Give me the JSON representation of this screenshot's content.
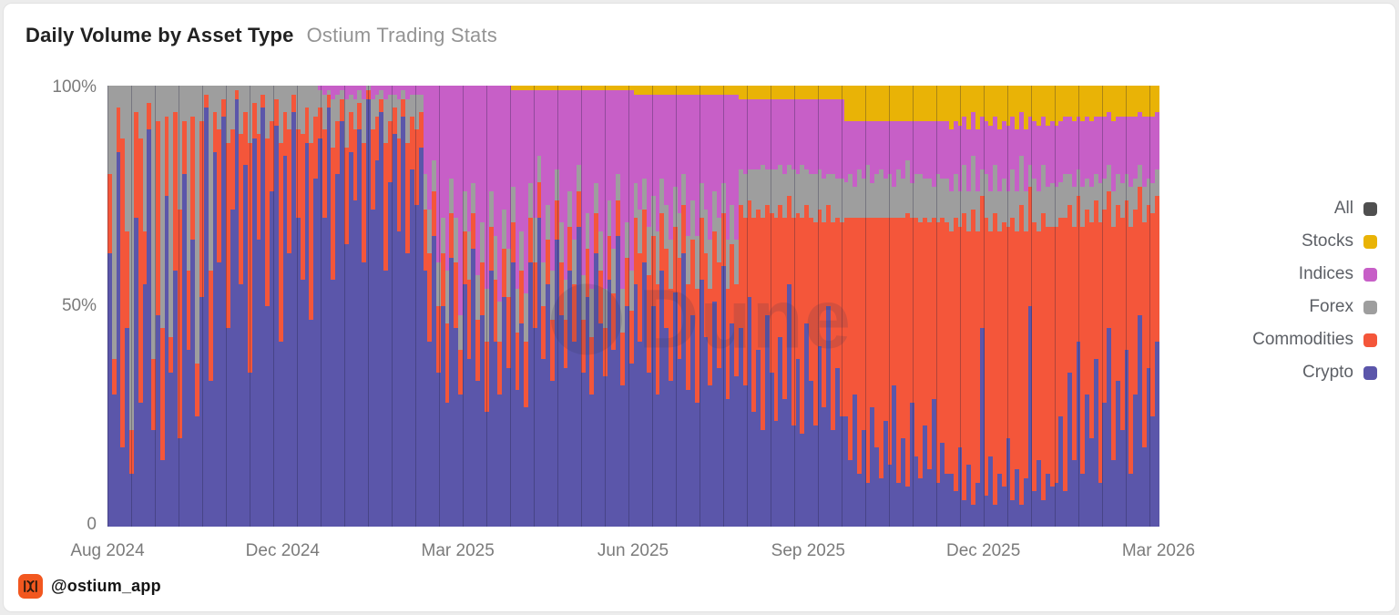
{
  "header": {
    "title": "Daily Volume by Asset Type",
    "subtitle": "Ostium Trading Stats"
  },
  "watermark": {
    "text": "Dune"
  },
  "footer": {
    "handle": "@ostium_app",
    "icon_bg": "#f2571f",
    "icon_glyph_color": "#2e1a0e"
  },
  "legend": {
    "position": "right",
    "items": [
      {
        "label": "All",
        "key": "all"
      },
      {
        "label": "Stocks",
        "key": "stocks"
      },
      {
        "label": "Indices",
        "key": "indices"
      },
      {
        "label": "Forex",
        "key": "forex"
      },
      {
        "label": "Commodities",
        "key": "commodities"
      },
      {
        "label": "Crypto",
        "key": "crypto"
      }
    ]
  },
  "chart_data": {
    "type": "bar",
    "variant": "100-percent-stacked-daily",
    "title": "Daily Volume by Asset Type",
    "subtitle": "Ostium Trading Stats",
    "grid": false,
    "legend_position": "right",
    "x_axis": {
      "tick_labels": [
        "Aug 2024",
        "Dec 2024",
        "Mar 2025",
        "Jun 2025",
        "Sep 2025",
        "Dec 2025",
        "Mar 2026"
      ]
    },
    "y_axis": {
      "tick_labels": [
        "100%",
        "50%",
        "0"
      ],
      "range": [
        0,
        100
      ],
      "unit": "percent of daily volume"
    },
    "series_colors": {
      "all": "#4f4f4f",
      "stocks": "#e9b306",
      "indices": "#c75fc7",
      "forex": "#9e9e9e",
      "commodities": "#f4563a",
      "crypto": "#5b56aa"
    },
    "stack_order": [
      "crypto",
      "commodities",
      "forex",
      "indices",
      "stocks"
    ],
    "bars_note": "each bar = share [crypto, commodities, forex, indices, stocks], ~2-3 day resolution Aug 2024 - Mar 2026, values estimated from pixels",
    "bars": [
      [
        62,
        18,
        20,
        0,
        0
      ],
      [
        30,
        8,
        62,
        0,
        0
      ],
      [
        85,
        10,
        5,
        0,
        0
      ],
      [
        18,
        70,
        12,
        0,
        0
      ],
      [
        45,
        22,
        33,
        0,
        0
      ],
      [
        12,
        10,
        78,
        0,
        0
      ],
      [
        70,
        24,
        6,
        0,
        0
      ],
      [
        28,
        60,
        12,
        0,
        0
      ],
      [
        55,
        12,
        33,
        0,
        0
      ],
      [
        90,
        6,
        4,
        0,
        0
      ],
      [
        22,
        16,
        62,
        0,
        0
      ],
      [
        48,
        44,
        8,
        0,
        0
      ],
      [
        15,
        30,
        55,
        0,
        0
      ],
      [
        75,
        18,
        7,
        0,
        0
      ],
      [
        35,
        8,
        57,
        0,
        0
      ],
      [
        58,
        36,
        6,
        0,
        0
      ],
      [
        20,
        52,
        28,
        0,
        0
      ],
      [
        80,
        12,
        8,
        0,
        0
      ],
      [
        40,
        18,
        42,
        0,
        0
      ],
      [
        65,
        28,
        7,
        0,
        0
      ],
      [
        25,
        12,
        63,
        0,
        0
      ],
      [
        52,
        40,
        8,
        0,
        0
      ],
      [
        95,
        3,
        2,
        0,
        0
      ],
      [
        33,
        25,
        42,
        0,
        0
      ],
      [
        85,
        9,
        6,
        0,
        0
      ],
      [
        60,
        30,
        10,
        0,
        0
      ],
      [
        93,
        4,
        3,
        0,
        0
      ],
      [
        45,
        42,
        13,
        0,
        0
      ],
      [
        72,
        18,
        10,
        0,
        0
      ],
      [
        97,
        2,
        1,
        0,
        0
      ],
      [
        55,
        34,
        11,
        0,
        0
      ],
      [
        82,
        12,
        6,
        0,
        0
      ],
      [
        35,
        52,
        13,
        0,
        0
      ],
      [
        88,
        8,
        4,
        0,
        0
      ],
      [
        65,
        24,
        11,
        0,
        0
      ],
      [
        95,
        3,
        2,
        0,
        0
      ],
      [
        50,
        38,
        12,
        0,
        0
      ],
      [
        76,
        16,
        8,
        0,
        0
      ],
      [
        91,
        6,
        3,
        0,
        0
      ],
      [
        42,
        45,
        13,
        0,
        0
      ],
      [
        84,
        10,
        6,
        0,
        0
      ],
      [
        62,
        28,
        10,
        0,
        0
      ],
      [
        94,
        4,
        2,
        0,
        0
      ],
      [
        70,
        20,
        10,
        0,
        0
      ],
      [
        56,
        33,
        11,
        0,
        0
      ],
      [
        87,
        8,
        5,
        0,
        0
      ],
      [
        47,
        40,
        13,
        0,
        0
      ],
      [
        79,
        14,
        7,
        0,
        0
      ],
      [
        88,
        7,
        4,
        1,
        0
      ],
      [
        70,
        20,
        8,
        2,
        0
      ],
      [
        95,
        3,
        1,
        1,
        0
      ],
      [
        56,
        30,
        11,
        3,
        0
      ],
      [
        80,
        12,
        6,
        2,
        0
      ],
      [
        92,
        5,
        2,
        1,
        0
      ],
      [
        64,
        22,
        11,
        3,
        0
      ],
      [
        85,
        9,
        4,
        2,
        0
      ],
      [
        74,
        16,
        7,
        3,
        0
      ],
      [
        90,
        6,
        3,
        1,
        0
      ],
      [
        60,
        27,
        10,
        3,
        0
      ],
      [
        97,
        2,
        1,
        0,
        0
      ],
      [
        72,
        18,
        7,
        3,
        0
      ],
      [
        83,
        10,
        5,
        2,
        0
      ],
      [
        94,
        3,
        2,
        1,
        0
      ],
      [
        58,
        29,
        10,
        3,
        0
      ],
      [
        78,
        14,
        6,
        2,
        0
      ],
      [
        89,
        6,
        3,
        2,
        0
      ],
      [
        67,
        21,
        9,
        3,
        0
      ],
      [
        93,
        4,
        2,
        1,
        0
      ],
      [
        62,
        25,
        10,
        3,
        0
      ],
      [
        81,
        12,
        5,
        2,
        0
      ],
      [
        73,
        17,
        8,
        2,
        0
      ],
      [
        86,
        8,
        4,
        2,
        0
      ],
      [
        58,
        14,
        8,
        20,
        0
      ],
      [
        42,
        20,
        10,
        28,
        0
      ],
      [
        66,
        10,
        7,
        17,
        0
      ],
      [
        35,
        15,
        10,
        40,
        0
      ],
      [
        50,
        12,
        8,
        30,
        0
      ],
      [
        28,
        18,
        12,
        42,
        0
      ],
      [
        61,
        10,
        8,
        21,
        0
      ],
      [
        45,
        15,
        10,
        30,
        0
      ],
      [
        30,
        10,
        8,
        52,
        0
      ],
      [
        55,
        12,
        9,
        24,
        0
      ],
      [
        38,
        18,
        11,
        33,
        0
      ],
      [
        63,
        8,
        7,
        22,
        0
      ],
      [
        33,
        14,
        10,
        43,
        0
      ],
      [
        48,
        12,
        9,
        31,
        0
      ],
      [
        26,
        16,
        12,
        46,
        0
      ],
      [
        58,
        10,
        8,
        24,
        0
      ],
      [
        42,
        14,
        10,
        34,
        0
      ],
      [
        30,
        12,
        9,
        49,
        0
      ],
      [
        52,
        11,
        9,
        28,
        0
      ],
      [
        36,
        16,
        11,
        37,
        0
      ],
      [
        60,
        9,
        8,
        22,
        1
      ],
      [
        31,
        13,
        10,
        45,
        1
      ],
      [
        46,
        12,
        9,
        32,
        1
      ],
      [
        27,
        15,
        11,
        46,
        1
      ],
      [
        60,
        10,
        8,
        21,
        1
      ],
      [
        45,
        15,
        10,
        29,
        1
      ],
      [
        70,
        8,
        6,
        15,
        1
      ],
      [
        38,
        12,
        10,
        39,
        1
      ],
      [
        55,
        10,
        8,
        26,
        1
      ],
      [
        33,
        14,
        11,
        41,
        1
      ],
      [
        65,
        9,
        7,
        18,
        1
      ],
      [
        48,
        12,
        9,
        30,
        1
      ],
      [
        36,
        11,
        9,
        43,
        1
      ],
      [
        58,
        10,
        8,
        23,
        1
      ],
      [
        42,
        13,
        10,
        34,
        1
      ],
      [
        68,
        8,
        6,
        17,
        1
      ],
      [
        35,
        12,
        10,
        42,
        1
      ],
      [
        52,
        11,
        8,
        28,
        1
      ],
      [
        30,
        13,
        11,
        45,
        1
      ],
      [
        62,
        9,
        7,
        21,
        1
      ],
      [
        46,
        12,
        9,
        32,
        1
      ],
      [
        34,
        11,
        9,
        45,
        1
      ],
      [
        56,
        10,
        8,
        25,
        1
      ],
      [
        40,
        13,
        10,
        36,
        1
      ],
      [
        66,
        8,
        6,
        19,
        1
      ],
      [
        32,
        12,
        10,
        45,
        1
      ],
      [
        50,
        11,
        8,
        30,
        1
      ],
      [
        37,
        12,
        9,
        41,
        1
      ],
      [
        55,
        15,
        8,
        20,
        2
      ],
      [
        42,
        20,
        10,
        26,
        2
      ],
      [
        60,
        12,
        7,
        19,
        2
      ],
      [
        35,
        22,
        11,
        30,
        2
      ],
      [
        50,
        16,
        9,
        23,
        2
      ],
      [
        30,
        25,
        12,
        31,
        2
      ],
      [
        58,
        13,
        8,
        19,
        2
      ],
      [
        45,
        18,
        10,
        25,
        2
      ],
      [
        33,
        21,
        11,
        33,
        2
      ],
      [
        53,
        15,
        9,
        21,
        2
      ],
      [
        38,
        23,
        10,
        27,
        2
      ],
      [
        62,
        11,
        7,
        18,
        2
      ],
      [
        31,
        24,
        11,
        32,
        2
      ],
      [
        48,
        17,
        9,
        24,
        2
      ],
      [
        28,
        26,
        12,
        32,
        2
      ],
      [
        56,
        14,
        8,
        20,
        2
      ],
      [
        43,
        19,
        10,
        26,
        2
      ],
      [
        32,
        22,
        11,
        33,
        2
      ],
      [
        51,
        16,
        9,
        22,
        2
      ],
      [
        36,
        24,
        10,
        28,
        2
      ],
      [
        59,
        12,
        7,
        20,
        2
      ],
      [
        29,
        25,
        11,
        33,
        2
      ],
      [
        46,
        18,
        9,
        25,
        2
      ],
      [
        34,
        21,
        10,
        33,
        2
      ],
      [
        45,
        28,
        8,
        16,
        3
      ],
      [
        32,
        38,
        10,
        17,
        3
      ],
      [
        52,
        22,
        7,
        16,
        3
      ],
      [
        26,
        44,
        11,
        16,
        3
      ],
      [
        40,
        32,
        9,
        16,
        3
      ],
      [
        22,
        48,
        12,
        15,
        3
      ],
      [
        48,
        25,
        8,
        16,
        3
      ],
      [
        35,
        36,
        10,
        16,
        3
      ],
      [
        24,
        46,
        11,
        16,
        3
      ],
      [
        43,
        30,
        9,
        15,
        3
      ],
      [
        29,
        41,
        10,
        17,
        3
      ],
      [
        55,
        20,
        7,
        15,
        3
      ],
      [
        23,
        47,
        11,
        16,
        3
      ],
      [
        38,
        33,
        9,
        17,
        3
      ],
      [
        21,
        49,
        12,
        15,
        3
      ],
      [
        46,
        27,
        8,
        16,
        3
      ],
      [
        33,
        37,
        10,
        17,
        3
      ],
      [
        23,
        46,
        11,
        17,
        3
      ],
      [
        41,
        31,
        9,
        16,
        3
      ],
      [
        27,
        42,
        10,
        18,
        3
      ],
      [
        50,
        23,
        7,
        17,
        3
      ],
      [
        22,
        47,
        11,
        17,
        3
      ],
      [
        36,
        34,
        9,
        18,
        3
      ],
      [
        25,
        44,
        10,
        18,
        3
      ],
      [
        25,
        45,
        8,
        14,
        8
      ],
      [
        15,
        55,
        10,
        12,
        8
      ],
      [
        30,
        40,
        7,
        15,
        8
      ],
      [
        12,
        58,
        11,
        11,
        8
      ],
      [
        22,
        48,
        9,
        13,
        8
      ],
      [
        10,
        60,
        12,
        10,
        8
      ],
      [
        27,
        43,
        8,
        14,
        8
      ],
      [
        18,
        52,
        10,
        12,
        8
      ],
      [
        11,
        59,
        11,
        11,
        8
      ],
      [
        24,
        46,
        9,
        13,
        8
      ],
      [
        14,
        56,
        10,
        12,
        8
      ],
      [
        32,
        38,
        7,
        15,
        8
      ],
      [
        10,
        60,
        11,
        11,
        8
      ],
      [
        20,
        50,
        9,
        13,
        8
      ],
      [
        9,
        62,
        12,
        9,
        8
      ],
      [
        28,
        42,
        8,
        14,
        8
      ],
      [
        16,
        54,
        10,
        12,
        8
      ],
      [
        11,
        58,
        11,
        12,
        8
      ],
      [
        23,
        47,
        9,
        13,
        8
      ],
      [
        13,
        56,
        10,
        13,
        8
      ],
      [
        29,
        41,
        7,
        15,
        8
      ],
      [
        10,
        59,
        11,
        12,
        8
      ],
      [
        19,
        51,
        9,
        13,
        8
      ],
      [
        12,
        57,
        10,
        13,
        8
      ],
      [
        12,
        55,
        9,
        14,
        10
      ],
      [
        8,
        62,
        10,
        12,
        8
      ],
      [
        18,
        50,
        8,
        15,
        9
      ],
      [
        6,
        65,
        11,
        11,
        7
      ],
      [
        14,
        53,
        9,
        14,
        10
      ],
      [
        5,
        67,
        12,
        10,
        6
      ],
      [
        10,
        57,
        9,
        14,
        10
      ],
      [
        45,
        30,
        6,
        12,
        7
      ],
      [
        7,
        63,
        10,
        12,
        8
      ],
      [
        16,
        51,
        9,
        15,
        9
      ],
      [
        5,
        66,
        11,
        11,
        7
      ],
      [
        12,
        55,
        9,
        14,
        10
      ],
      [
        9,
        60,
        10,
        13,
        8
      ],
      [
        20,
        48,
        8,
        15,
        9
      ],
      [
        6,
        64,
        11,
        12,
        7
      ],
      [
        13,
        54,
        9,
        14,
        10
      ],
      [
        5,
        68,
        11,
        10,
        6
      ],
      [
        11,
        56,
        9,
        14,
        10
      ],
      [
        50,
        27,
        5,
        11,
        7
      ],
      [
        8,
        61,
        10,
        13,
        8
      ],
      [
        15,
        52,
        9,
        15,
        9
      ],
      [
        6,
        65,
        11,
        11,
        7
      ],
      [
        12,
        56,
        9,
        14,
        9
      ],
      [
        9,
        59,
        10,
        14,
        8
      ],
      [
        10,
        58,
        9,
        14,
        9
      ],
      [
        25,
        45,
        8,
        14,
        8
      ],
      [
        8,
        62,
        10,
        13,
        7
      ],
      [
        35,
        38,
        7,
        13,
        7
      ],
      [
        15,
        53,
        9,
        15,
        8
      ],
      [
        42,
        33,
        6,
        12,
        7
      ],
      [
        12,
        56,
        9,
        15,
        8
      ],
      [
        30,
        42,
        7,
        14,
        7
      ],
      [
        20,
        49,
        8,
        15,
        8
      ],
      [
        38,
        36,
        6,
        13,
        7
      ],
      [
        10,
        59,
        9,
        15,
        7
      ],
      [
        28,
        44,
        7,
        14,
        7
      ],
      [
        45,
        31,
        6,
        12,
        6
      ],
      [
        15,
        53,
        8,
        16,
        8
      ],
      [
        33,
        40,
        7,
        13,
        7
      ],
      [
        22,
        48,
        8,
        15,
        7
      ],
      [
        40,
        34,
        6,
        13,
        7
      ],
      [
        12,
        56,
        9,
        16,
        7
      ],
      [
        30,
        42,
        7,
        14,
        7
      ],
      [
        48,
        29,
        5,
        12,
        6
      ],
      [
        18,
        51,
        8,
        16,
        7
      ],
      [
        36,
        37,
        6,
        14,
        7
      ],
      [
        25,
        46,
        7,
        15,
        7
      ],
      [
        42,
        33,
        6,
        13,
        6
      ]
    ]
  }
}
